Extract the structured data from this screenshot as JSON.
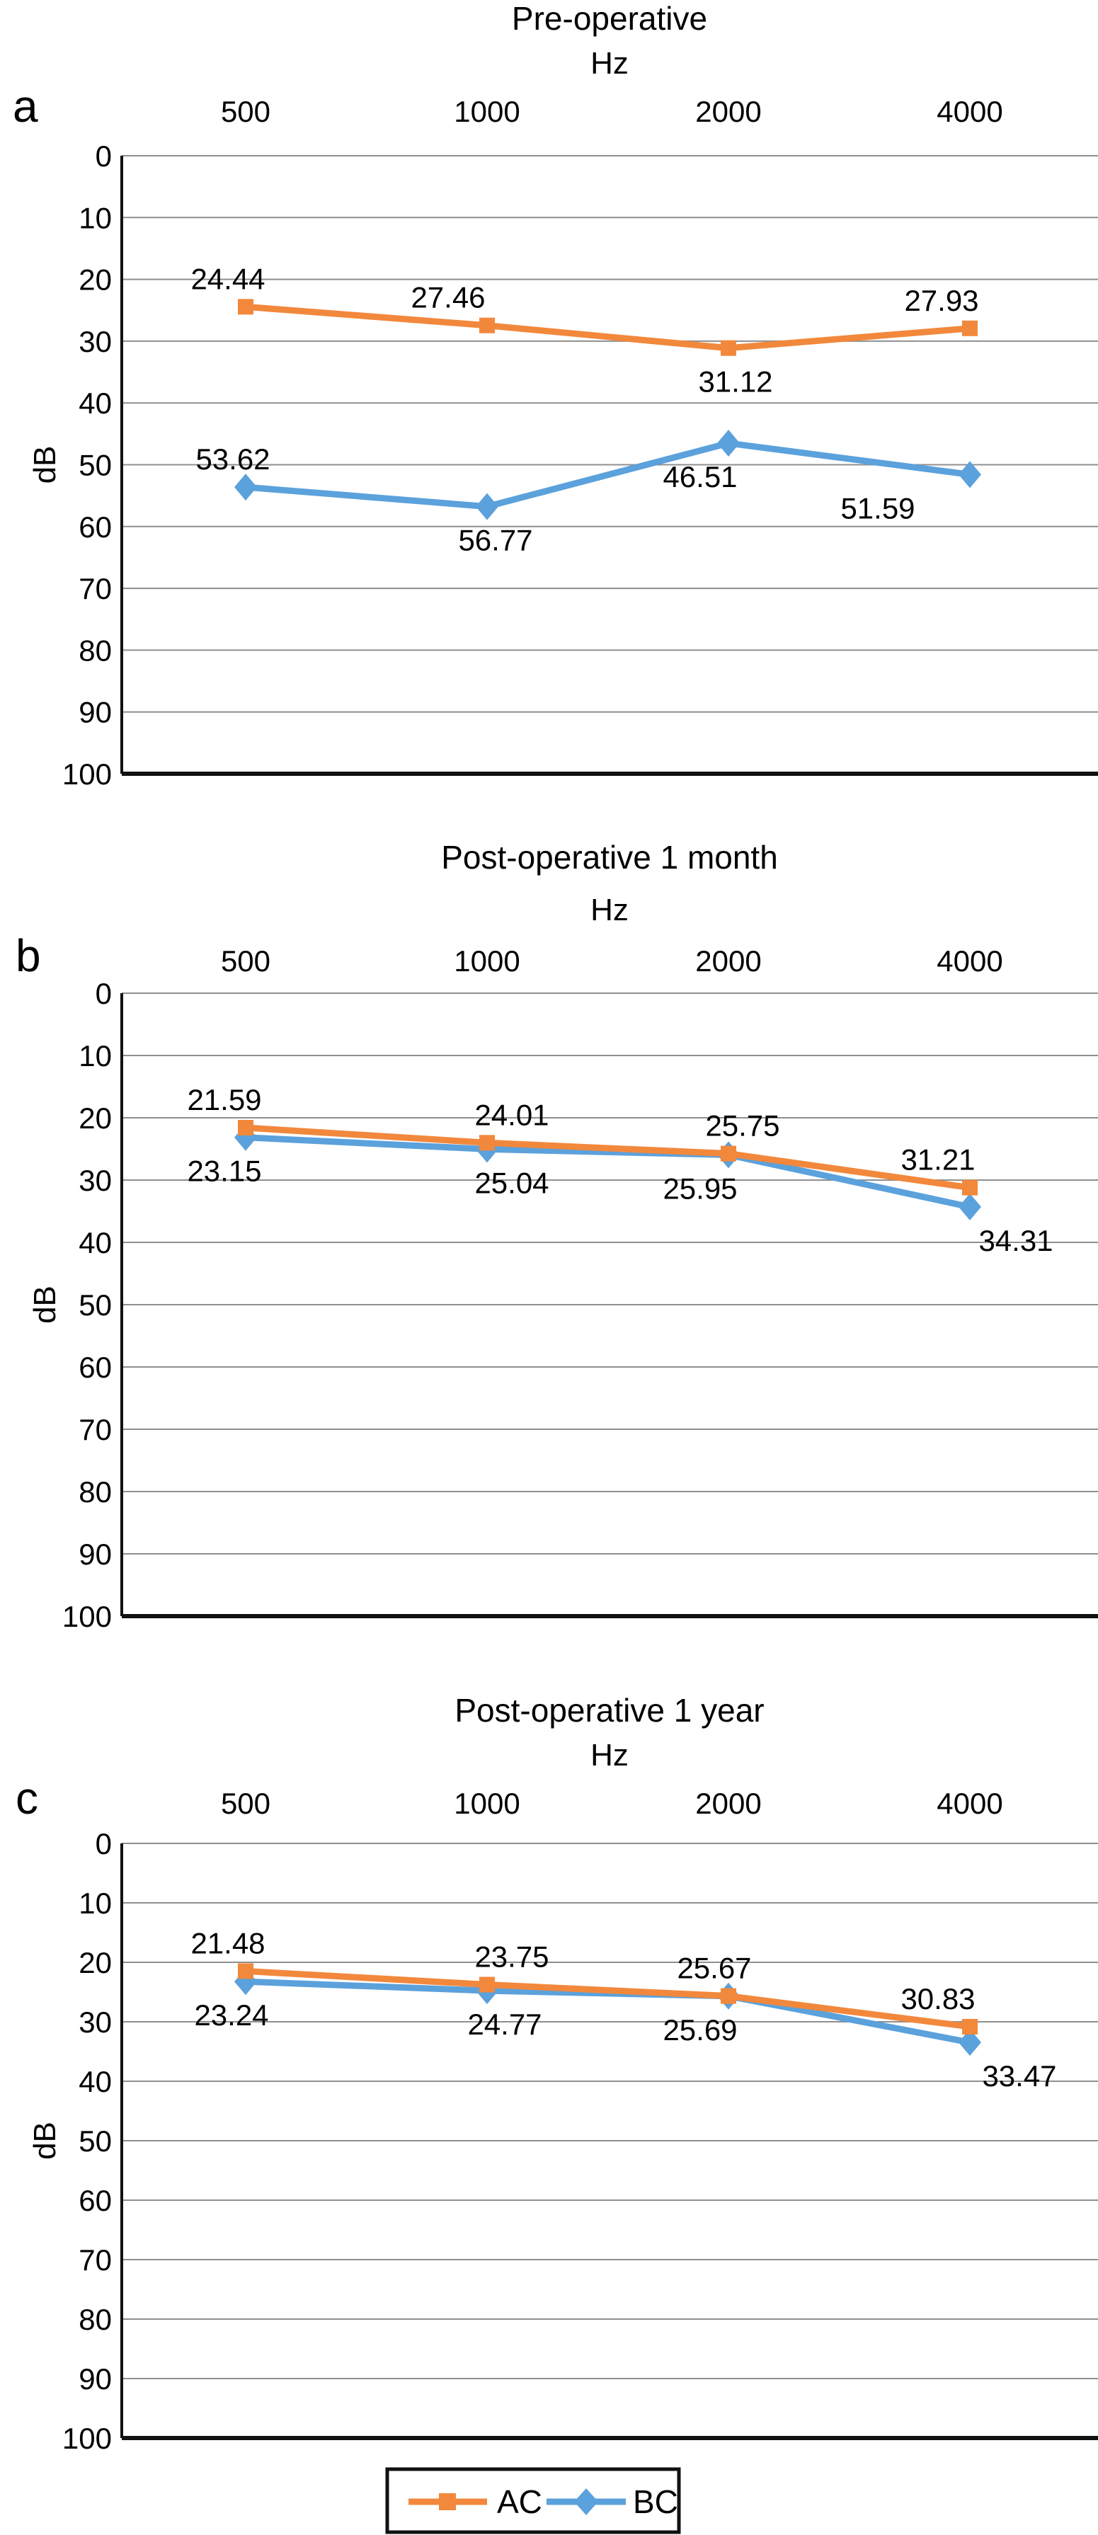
{
  "figure": {
    "panels": [
      {
        "letter": "a"
      },
      {
        "letter": "b"
      },
      {
        "letter": "c"
      }
    ],
    "legend": {
      "items": [
        {
          "label": "AC",
          "color": "#F2883C",
          "marker": "square-marker"
        },
        {
          "label": "BC",
          "color": "#5BA1DC",
          "marker": "diamond-marker"
        }
      ]
    },
    "colors": {
      "ac_series": "#F2883C",
      "bc_series": "#5BA1DC",
      "gridline": "#8F8F8F",
      "axis": "#111111"
    }
  },
  "chart_data": [
    {
      "type": "line",
      "title": "Pre-operative",
      "xlabel": "Hz",
      "ylabel": "dB",
      "categories": [
        "500",
        "1000",
        "2000",
        "4000"
      ],
      "y_ticks": [
        "0",
        "10",
        "20",
        "30",
        "40",
        "50",
        "60",
        "70",
        "80",
        "90",
        "100"
      ],
      "ylim": [
        0,
        100
      ],
      "y_axis_inverted": true,
      "grid": "horizontal",
      "legend_position": "bottom",
      "series": [
        {
          "name": "AC",
          "marker": "square",
          "color": "#F2883C",
          "values": [
            24.44,
            27.46,
            31.12,
            27.93
          ]
        },
        {
          "name": "BC",
          "marker": "diamond",
          "color": "#5BA1DC",
          "values": [
            53.62,
            56.77,
            46.51,
            51.59
          ]
        }
      ]
    },
    {
      "type": "line",
      "title": "Post-operative 1 month",
      "xlabel": "Hz",
      "ylabel": "dB",
      "categories": [
        "500",
        "1000",
        "2000",
        "4000"
      ],
      "y_ticks": [
        "0",
        "10",
        "20",
        "30",
        "40",
        "50",
        "60",
        "70",
        "80",
        "90",
        "100"
      ],
      "ylim": [
        0,
        100
      ],
      "y_axis_inverted": true,
      "grid": "horizontal",
      "legend_position": "bottom",
      "series": [
        {
          "name": "AC",
          "marker": "square",
          "color": "#F2883C",
          "values": [
            21.59,
            24.01,
            25.75,
            31.21
          ]
        },
        {
          "name": "BC",
          "marker": "diamond",
          "color": "#5BA1DC",
          "values": [
            23.15,
            25.04,
            25.95,
            34.31
          ]
        }
      ]
    },
    {
      "type": "line",
      "title": "Post-operative 1 year",
      "xlabel": "Hz",
      "ylabel": "dB",
      "categories": [
        "500",
        "1000",
        "2000",
        "4000"
      ],
      "y_ticks": [
        "0",
        "10",
        "20",
        "30",
        "40",
        "50",
        "60",
        "70",
        "80",
        "90",
        "100"
      ],
      "ylim": [
        0,
        100
      ],
      "y_axis_inverted": true,
      "grid": "horizontal",
      "legend_position": "bottom",
      "series": [
        {
          "name": "AC",
          "marker": "square",
          "color": "#F2883C",
          "values": [
            21.48,
            23.75,
            25.67,
            30.83
          ]
        },
        {
          "name": "BC",
          "marker": "diamond",
          "color": "#5BA1DC",
          "values": [
            23.24,
            24.77,
            25.69,
            33.47
          ]
        }
      ]
    }
  ]
}
